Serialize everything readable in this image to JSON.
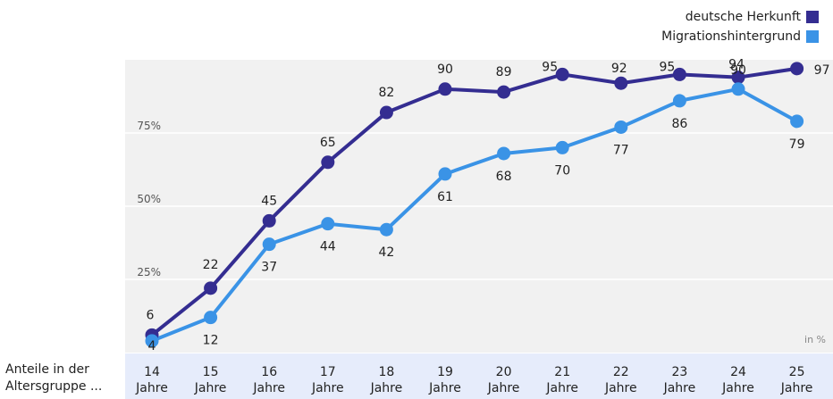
{
  "legend": [
    {
      "name": "deutsche Herkunft",
      "color": "#342d91"
    },
    {
      "name": "Migrationshintergrund",
      "color": "#3a93e6"
    }
  ],
  "row_label": [
    "Anteile in der",
    "Altersgruppe ..."
  ],
  "unit_label": "in %",
  "chart_data": {
    "type": "line",
    "categories": [
      [
        "14",
        "Jahre"
      ],
      [
        "15",
        "Jahre"
      ],
      [
        "16",
        "Jahre"
      ],
      [
        "17",
        "Jahre"
      ],
      [
        "18",
        "Jahre"
      ],
      [
        "19",
        "Jahre"
      ],
      [
        "20",
        "Jahre"
      ],
      [
        "21",
        "Jahre"
      ],
      [
        "22",
        "Jahre"
      ],
      [
        "23",
        "Jahre"
      ],
      [
        "24",
        "Jahre"
      ],
      [
        "25",
        "Jahre"
      ]
    ],
    "yticks": [
      {
        "value": 25,
        "label": "25%"
      },
      {
        "value": 50,
        "label": "50%"
      },
      {
        "value": 75,
        "label": "75%"
      }
    ],
    "ylim": [
      0,
      100
    ],
    "grid": true,
    "legend_position": "top-right",
    "series": [
      {
        "name": "deutsche Herkunft",
        "color": "#342d91",
        "values": [
          6,
          22,
          45,
          65,
          82,
          90,
          89,
          95,
          92,
          95,
          94,
          97
        ],
        "labels": [
          "6",
          "22",
          "45",
          "65",
          "82",
          "90",
          "89",
          "95",
          "92",
          "95",
          "94",
          "97"
        ]
      },
      {
        "name": "Migrationshintergrund",
        "color": "#3a93e6",
        "values": [
          4,
          12,
          37,
          44,
          42,
          61,
          68,
          70,
          77,
          86,
          90,
          79
        ],
        "labels": [
          "4",
          "12",
          "37",
          "44",
          "42",
          "61",
          "68",
          "70",
          "77",
          "86",
          "90",
          "79"
        ]
      }
    ]
  }
}
